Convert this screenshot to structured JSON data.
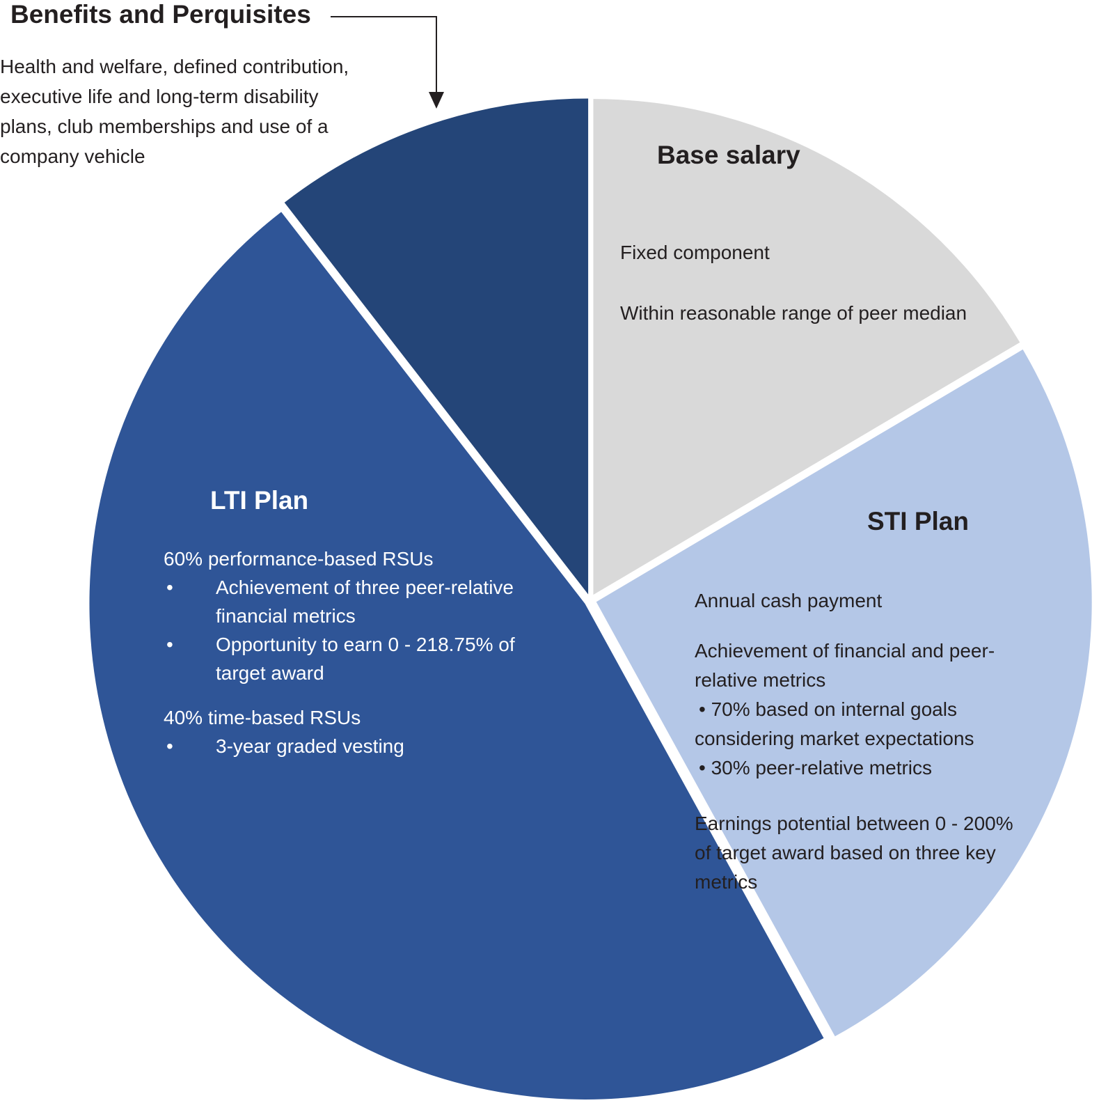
{
  "chart_data": {
    "type": "pie",
    "title": "",
    "slices": [
      {
        "key": "base",
        "label": "Base salary",
        "share_pct": 16.5,
        "color": "#d9d9d9",
        "lines": [
          "Fixed component",
          "Within reasonable range of peer median"
        ]
      },
      {
        "key": "sti",
        "label": "STI Plan",
        "share_pct": 25.5,
        "color": "#b4c7e7",
        "paragraphs": [
          [
            "Annual cash payment"
          ],
          [
            "Achievement of financial and peer-",
            "relative metrics",
            "• 70% based on internal goals",
            "considering market expectations",
            "• 30% peer-relative metrics"
          ],
          [
            "Earnings potential between 0 - 200%",
            "of target award based on three key",
            "metrics"
          ]
        ]
      },
      {
        "key": "lti",
        "label": "LTI Plan",
        "share_pct": 47.5,
        "color": "#2f5597",
        "groups": [
          {
            "heading": "60% performance-based RSUs",
            "bullets": [
              [
                "Achievement of three peer-relative",
                "financial metrics"
              ],
              [
                "Opportunity to earn 0 - 218.75% of",
                "target award"
              ]
            ]
          },
          {
            "heading": "40% time-based RSUs",
            "bullets": [
              [
                "3-year graded vesting"
              ]
            ]
          }
        ]
      },
      {
        "key": "benefits",
        "label": "Benefits and Perquisites",
        "share_pct": 10.5,
        "color": "#244578",
        "lines": [
          "Health and welfare, defined contribution,",
          "executive life and long-term disability",
          "plans, club memberships and use of a",
          "company vehicle"
        ]
      }
    ],
    "legend": "none",
    "bullet_symbol": "•"
  }
}
